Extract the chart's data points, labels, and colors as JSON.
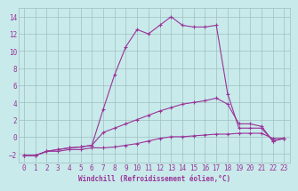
{
  "xlabel": "Windchill (Refroidissement éolien,°C)",
  "background_color": "#c8eaea",
  "grid_color": "#9dbfbf",
  "line_color": "#993399",
  "xlim": [
    -0.5,
    23.5
  ],
  "ylim": [
    -3.0,
    15.0
  ],
  "x_ticks": [
    0,
    1,
    2,
    3,
    4,
    5,
    6,
    7,
    8,
    9,
    10,
    11,
    12,
    13,
    14,
    15,
    16,
    17,
    18,
    19,
    20,
    21,
    22,
    23
  ],
  "y_ticks": [
    -2,
    0,
    2,
    4,
    6,
    8,
    10,
    12,
    14
  ],
  "curve1_x": [
    0,
    1,
    2,
    3,
    4,
    5,
    6,
    7,
    8,
    9,
    10,
    11,
    12,
    13,
    14,
    15,
    16,
    17,
    18,
    19,
    20,
    21,
    22,
    23
  ],
  "curve1_y": [
    -2.2,
    -2.2,
    -1.7,
    -1.7,
    -1.5,
    -1.5,
    -1.3,
    -1.3,
    -1.2,
    -1.0,
    -0.8,
    -0.5,
    -0.2,
    0.0,
    0.0,
    0.1,
    0.2,
    0.3,
    0.3,
    0.4,
    0.4,
    0.4,
    -0.2,
    -0.2
  ],
  "curve2_x": [
    0,
    1,
    2,
    3,
    4,
    5,
    6,
    7,
    8,
    9,
    10,
    11,
    12,
    13,
    14,
    15,
    16,
    17,
    18,
    19,
    20,
    21,
    22,
    23
  ],
  "curve2_y": [
    -2.2,
    -2.2,
    -1.7,
    -1.5,
    -1.3,
    -1.2,
    -1.0,
    3.2,
    7.2,
    10.5,
    12.5,
    12.0,
    13.0,
    14.0,
    13.0,
    12.8,
    12.8,
    13.0,
    5.0,
    1.0,
    1.0,
    1.0,
    -0.5,
    -0.2
  ],
  "curve3_x": [
    0,
    1,
    2,
    3,
    4,
    5,
    6,
    7,
    8,
    9,
    10,
    11,
    12,
    13,
    14,
    15,
    16,
    17,
    18,
    19,
    20,
    21,
    22,
    23
  ],
  "curve3_y": [
    -2.2,
    -2.2,
    -1.7,
    -1.5,
    -1.3,
    -1.2,
    -1.0,
    0.5,
    1.0,
    1.5,
    2.0,
    2.5,
    3.0,
    3.4,
    3.8,
    4.0,
    4.2,
    4.5,
    3.8,
    1.5,
    1.5,
    1.2,
    -0.5,
    -0.2
  ],
  "tick_fontsize": 5.5,
  "xlabel_fontsize": 5.5,
  "marker": "+",
  "markersize": 3,
  "linewidth": 0.8
}
